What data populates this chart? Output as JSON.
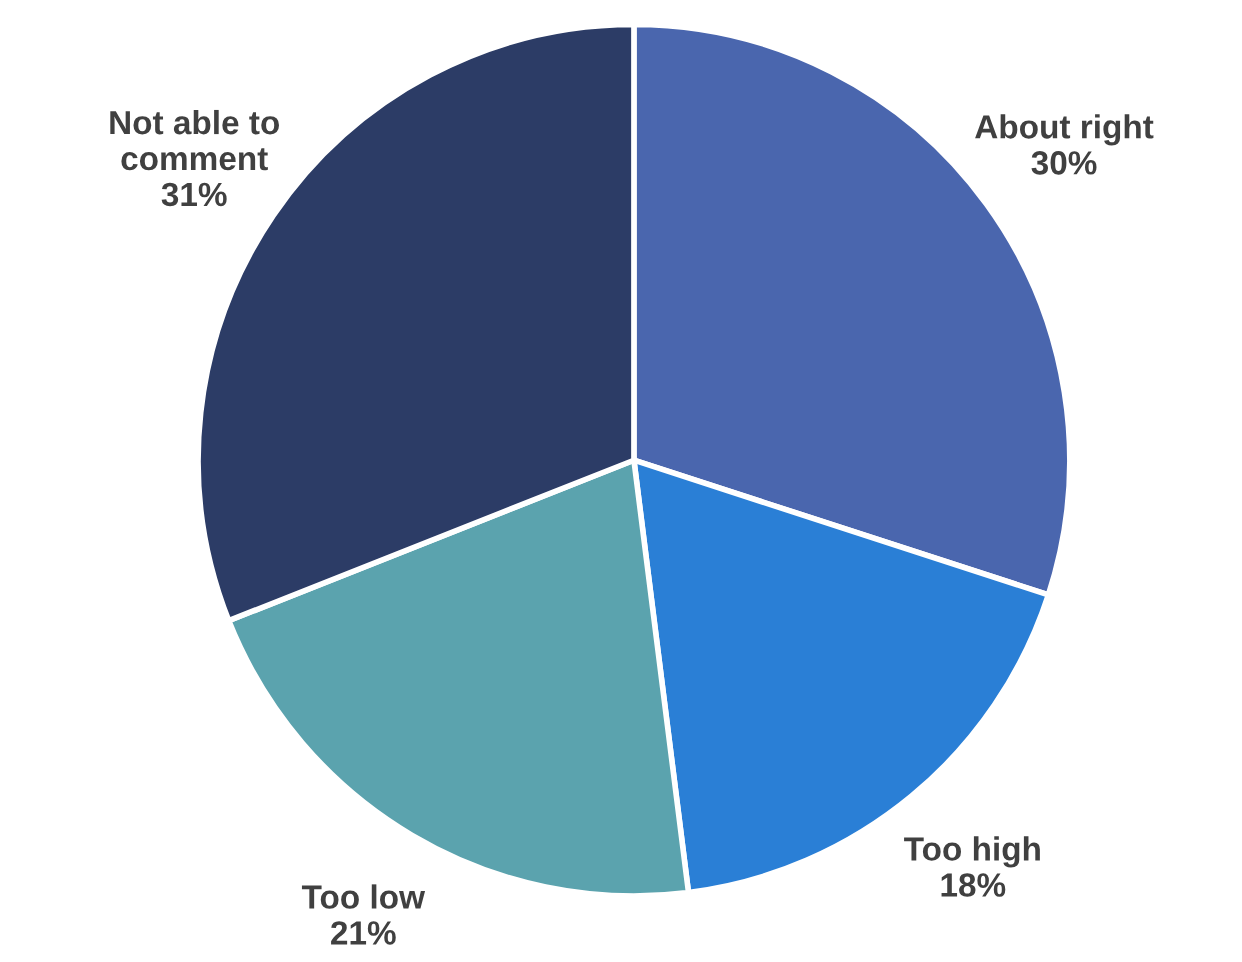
{
  "chart_data": {
    "type": "pie",
    "categories": [
      "About right",
      "Too high",
      "Too low",
      "Not able to\ncomment"
    ],
    "values": [
      30,
      18,
      21,
      31
    ],
    "colors": [
      "#4a66ae",
      "#2a7fd6",
      "#5ba3ae",
      "#2c3c66"
    ],
    "value_labels": [
      "30%",
      "18%",
      "21%",
      "31%"
    ],
    "legend": false
  }
}
